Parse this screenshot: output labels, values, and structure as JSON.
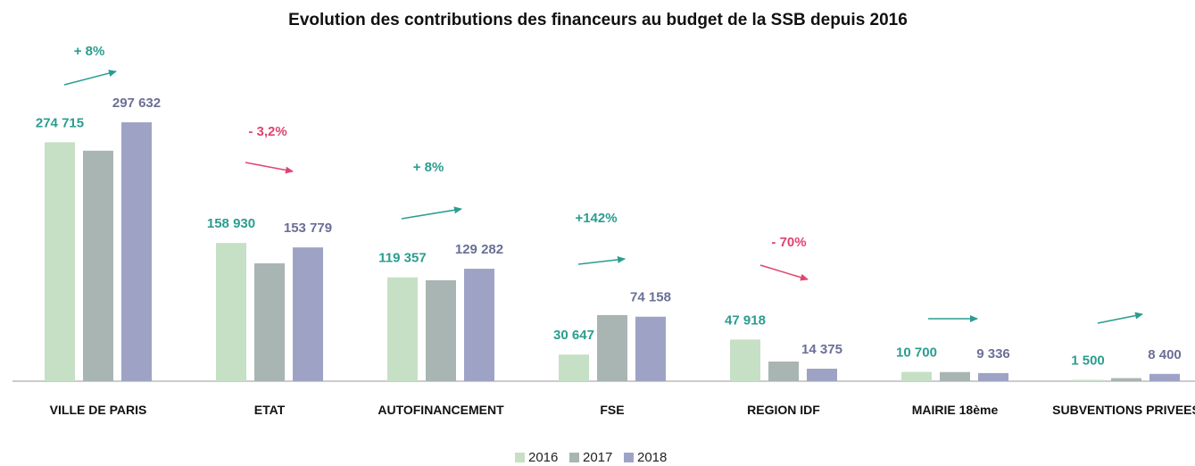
{
  "chart_data": {
    "type": "bar",
    "title": "Evolution des contributions des financeurs au budget de la SSB depuis 2016",
    "categories": [
      "VILLE DE PARIS",
      "ETAT",
      "AUTOFINANCEMENT",
      "FSE",
      "REGION IDF",
      "MAIRIE 18ème",
      "SUBVENTIONS PRIVEES"
    ],
    "series": [
      {
        "name": "2016",
        "color": "#c6e0c5",
        "label_color": "#2a9d8f",
        "values": [
          274715,
          158930,
          119357,
          30647,
          47918,
          10700,
          1500
        ],
        "value_labels": [
          "274 715",
          "158 930",
          "119 357",
          "30 647",
          "47 918",
          "10 700",
          "1 500"
        ]
      },
      {
        "name": "2017",
        "color": "#a9b5b3",
        "values": [
          265000,
          135500,
          116000,
          76000,
          22600,
          10500,
          3500
        ]
      },
      {
        "name": "2018",
        "color": "#9ea3c6",
        "label_color": "#6b6f96",
        "values": [
          297632,
          153779,
          129282,
          74158,
          14375,
          9336,
          8400
        ],
        "value_labels": [
          "297 632",
          "153 779",
          "129 282",
          "74 158",
          "14 375",
          "9 336",
          "8 400"
        ]
      }
    ],
    "annotations": [
      {
        "text": "+ 8%",
        "trend": "up",
        "color": "#2a9d8f"
      },
      {
        "text": "- 3,2%",
        "trend": "down",
        "color": "#e0436e"
      },
      {
        "text": "+ 8%",
        "trend": "up",
        "color": "#2a9d8f"
      },
      {
        "text": "+142%",
        "trend": "up",
        "color": "#2a9d8f"
      },
      {
        "text": "- 70%",
        "trend": "down",
        "color": "#e0436e"
      },
      {
        "trend": "flat",
        "color": "#2a9d8f"
      },
      {
        "trend": "up",
        "color": "#2a9d8f"
      }
    ],
    "legend": "bottom"
  }
}
